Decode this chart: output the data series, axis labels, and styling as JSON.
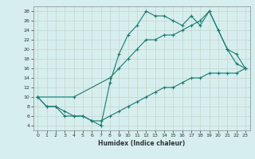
{
  "line1_x": [
    0,
    1,
    2,
    3,
    4,
    5,
    6,
    7,
    8,
    9,
    10,
    11,
    12,
    13,
    14,
    15,
    16,
    17,
    18,
    19,
    20,
    21,
    22,
    23
  ],
  "line1_y": [
    10,
    8,
    8,
    7,
    6,
    6,
    5,
    4,
    13,
    19,
    23,
    25,
    28,
    27,
    27,
    26,
    25,
    27,
    25,
    28,
    24,
    20,
    17,
    16
  ],
  "line2_x": [
    0,
    4,
    8,
    9,
    10,
    11,
    12,
    13,
    14,
    15,
    16,
    17,
    18,
    19,
    20,
    21,
    22,
    23
  ],
  "line2_y": [
    10,
    10,
    14,
    16,
    18,
    20,
    22,
    22,
    23,
    23,
    24,
    25,
    26,
    28,
    24,
    20,
    19,
    16
  ],
  "line3_x": [
    0,
    1,
    2,
    3,
    4,
    5,
    6,
    7,
    8,
    9,
    10,
    11,
    12,
    13,
    14,
    15,
    16,
    17,
    18,
    19,
    20,
    21,
    22,
    23
  ],
  "line3_y": [
    10,
    8,
    8,
    6,
    6,
    6,
    5,
    5,
    6,
    7,
    8,
    9,
    10,
    11,
    12,
    12,
    13,
    14,
    14,
    15,
    15,
    15,
    15,
    16
  ],
  "color": "#1a7a6e",
  "bg_color": "#d6eeee",
  "grid_color": "#b8d8d8",
  "xlabel": "Humidex (Indice chaleur)",
  "ylim": [
    3,
    29
  ],
  "xlim": [
    -0.5,
    23.5
  ],
  "yticks": [
    4,
    6,
    8,
    10,
    12,
    14,
    16,
    18,
    20,
    22,
    24,
    26,
    28
  ],
  "xticks": [
    0,
    1,
    2,
    3,
    4,
    5,
    6,
    7,
    8,
    9,
    10,
    11,
    12,
    13,
    14,
    15,
    16,
    17,
    18,
    19,
    20,
    21,
    22,
    23
  ]
}
